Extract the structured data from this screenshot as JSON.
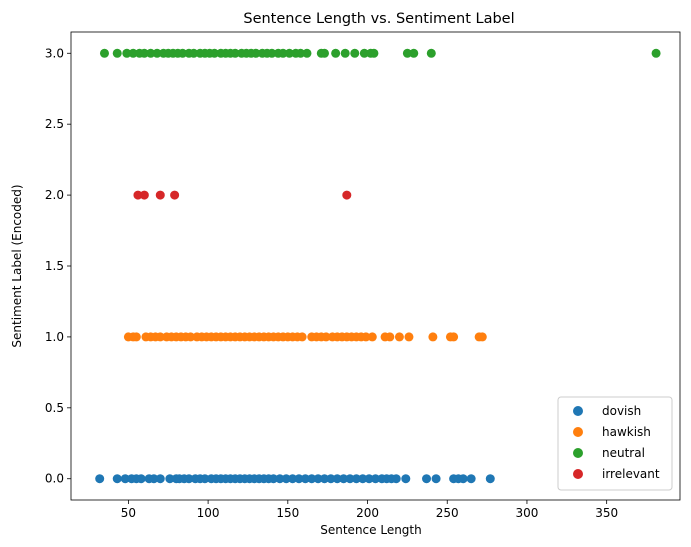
{
  "chart_data": {
    "type": "scatter",
    "title": "Sentence Length vs. Sentiment Label",
    "xlabel": "Sentence Length",
    "ylabel": "Sentiment Label (Encoded)",
    "xlim": [
      14,
      396
    ],
    "ylim": [
      -0.15,
      3.15
    ],
    "xticks": [
      50,
      100,
      150,
      200,
      250,
      300,
      350
    ],
    "xtick_labels": [
      "50",
      "100",
      "150",
      "200",
      "250",
      "300",
      "350"
    ],
    "yticks": [
      0.0,
      0.5,
      1.0,
      1.5,
      2.0,
      2.5,
      3.0
    ],
    "ytick_labels": [
      "0.0",
      "0.5",
      "1.0",
      "1.5",
      "2.0",
      "2.5",
      "3.0"
    ],
    "grid": false,
    "legend_position": "bottom-right",
    "series": [
      {
        "name": "dovish",
        "color": "#1f77b4",
        "x": [
          32,
          43,
          48,
          52,
          55,
          58,
          63,
          66,
          70,
          76,
          80,
          82,
          85,
          88,
          92,
          95,
          98,
          102,
          105,
          108,
          111,
          114,
          117,
          120,
          123,
          126,
          129,
          132,
          135,
          138,
          141,
          145,
          149,
          153,
          157,
          161,
          165,
          169,
          173,
          177,
          181,
          185,
          189,
          193,
          197,
          201,
          205,
          209,
          212,
          215,
          218,
          224,
          237,
          243,
          254,
          257,
          260,
          265,
          277
        ],
        "y": [
          0,
          0,
          0,
          0,
          0,
          0,
          0,
          0,
          0,
          0,
          0,
          0,
          0,
          0,
          0,
          0,
          0,
          0,
          0,
          0,
          0,
          0,
          0,
          0,
          0,
          0,
          0,
          0,
          0,
          0,
          0,
          0,
          0,
          0,
          0,
          0,
          0,
          0,
          0,
          0,
          0,
          0,
          0,
          0,
          0,
          0,
          0,
          0,
          0,
          0,
          0,
          0,
          0,
          0,
          0,
          0,
          0,
          0,
          0
        ]
      },
      {
        "name": "hawkish",
        "color": "#ff7f0e",
        "x": [
          50,
          53,
          55,
          61,
          64,
          67,
          70,
          74,
          77,
          80,
          83,
          86,
          89,
          93,
          96,
          99,
          102,
          105,
          108,
          111,
          114,
          117,
          120,
          123,
          126,
          129,
          132,
          135,
          138,
          141,
          144,
          147,
          150,
          153,
          156,
          159,
          165,
          168,
          171,
          174,
          178,
          181,
          184,
          187,
          190,
          193,
          196,
          199,
          203,
          211,
          214,
          220,
          226,
          241,
          252,
          254,
          270,
          272
        ],
        "y": [
          1,
          1,
          1,
          1,
          1,
          1,
          1,
          1,
          1,
          1,
          1,
          1,
          1,
          1,
          1,
          1,
          1,
          1,
          1,
          1,
          1,
          1,
          1,
          1,
          1,
          1,
          1,
          1,
          1,
          1,
          1,
          1,
          1,
          1,
          1,
          1,
          1,
          1,
          1,
          1,
          1,
          1,
          1,
          1,
          1,
          1,
          1,
          1,
          1,
          1,
          1,
          1,
          1,
          1,
          1,
          1,
          1,
          1
        ]
      },
      {
        "name": "neutral",
        "color": "#2ca02c",
        "x": [
          35,
          43,
          49,
          53,
          57,
          60,
          64,
          68,
          72,
          75,
          78,
          81,
          84,
          88,
          91,
          95,
          98,
          101,
          104,
          108,
          111,
          114,
          117,
          121,
          124,
          127,
          130,
          134,
          137,
          140,
          144,
          147,
          151,
          155,
          158,
          162,
          171,
          173,
          180,
          186,
          192,
          198,
          202,
          204,
          225,
          229,
          240,
          381
        ],
        "y": [
          3,
          3,
          3,
          3,
          3,
          3,
          3,
          3,
          3,
          3,
          3,
          3,
          3,
          3,
          3,
          3,
          3,
          3,
          3,
          3,
          3,
          3,
          3,
          3,
          3,
          3,
          3,
          3,
          3,
          3,
          3,
          3,
          3,
          3,
          3,
          3,
          3,
          3,
          3,
          3,
          3,
          3,
          3,
          3,
          3,
          3,
          3,
          3
        ]
      },
      {
        "name": "irrelevant",
        "color": "#d62728",
        "x": [
          56,
          60,
          70,
          79,
          187
        ],
        "y": [
          2,
          2,
          2,
          2,
          2
        ]
      }
    ]
  }
}
